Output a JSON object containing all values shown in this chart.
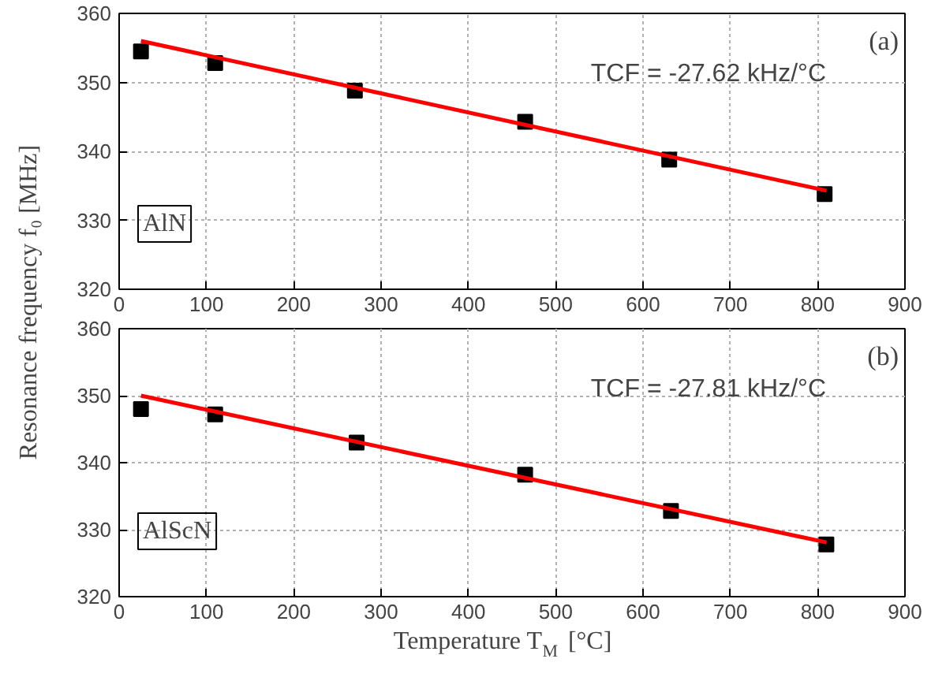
{
  "chart_data": [
    {
      "type": "scatter",
      "ylabel": "Resonance frequency f₀ [MHz]",
      "marker": "square",
      "grid": true,
      "xlim": [
        0,
        900
      ],
      "xticks": [
        0,
        100,
        200,
        300,
        400,
        500,
        600,
        700,
        800,
        900
      ],
      "ylim": [
        320,
        360
      ],
      "yticks": [
        320,
        330,
        340,
        350,
        360
      ],
      "annotations": [
        "(a)",
        "TCF = -27.62 kHz/°C",
        "AlN"
      ],
      "series": [
        {
          "color": "#000000",
          "x": [
            25,
            110,
            270,
            465,
            630,
            808
          ],
          "values": [
            354.5,
            352.8,
            348.8,
            344.3,
            338.8,
            333.8
          ]
        },
        {
          "type": "line",
          "marker": "none",
          "color": "#ff0000",
          "x": [
            25,
            810
          ],
          "values": [
            356.0,
            334.3
          ]
        }
      ]
    },
    {
      "type": "scatter",
      "xlabel": "Temperature T$_{M}$ [°C]",
      "marker": "square",
      "grid": true,
      "xlim": [
        0,
        900
      ],
      "xticks": [
        0,
        100,
        200,
        300,
        400,
        500,
        600,
        700,
        800,
        900
      ],
      "ylim": [
        320,
        360
      ],
      "yticks": [
        320,
        330,
        340,
        350,
        360
      ],
      "annotations": [
        "(b)",
        "TCF = -27.81 kHz/°C",
        "AlScN"
      ],
      "series": [
        {
          "color": "#000000",
          "x": [
            25,
            110,
            272,
            465,
            632,
            810
          ],
          "values": [
            348.0,
            347.2,
            343.0,
            338.2,
            332.8,
            327.8
          ]
        },
        {
          "type": "line",
          "marker": "none",
          "color": "#ff0000",
          "x": [
            25,
            810
          ],
          "values": [
            350.0,
            328.1
          ]
        }
      ]
    }
  ]
}
